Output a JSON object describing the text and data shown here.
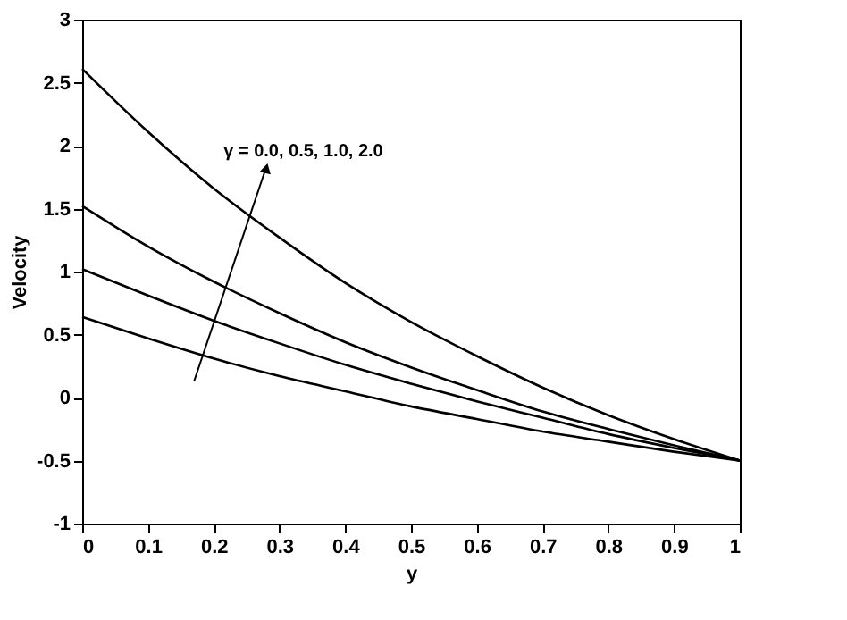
{
  "chart_data": {
    "type": "line",
    "xlabel": "y",
    "ylabel": "Velocity",
    "x": [
      0,
      0.1,
      0.2,
      0.3,
      0.4,
      0.5,
      0.6,
      0.7,
      0.8,
      0.9,
      1
    ],
    "series": [
      {
        "color": "#000000",
        "values": [
          0.64,
          0.47,
          0.31,
          0.17,
          0.05,
          -0.07,
          -0.17,
          -0.27,
          -0.35,
          -0.43,
          -0.5
        ]
      },
      {
        "color": "#000000",
        "values": [
          1.02,
          0.81,
          0.61,
          0.43,
          0.26,
          0.11,
          -0.03,
          -0.16,
          -0.29,
          -0.4,
          -0.5
        ]
      },
      {
        "color": "#000000",
        "values": [
          1.52,
          1.2,
          0.92,
          0.67,
          0.44,
          0.24,
          0.06,
          -0.11,
          -0.25,
          -0.38,
          -0.5
        ]
      },
      {
        "color": "#000000",
        "values": [
          2.61,
          2.11,
          1.66,
          1.27,
          0.91,
          0.6,
          0.33,
          0.08,
          -0.14,
          -0.33,
          -0.5
        ]
      }
    ],
    "xlim": [
      0,
      1
    ],
    "ylim": [
      -1,
      3
    ],
    "xticks": [
      0,
      0.1,
      0.2,
      0.3,
      0.4,
      0.5,
      0.6,
      0.7,
      0.8,
      0.9,
      1
    ],
    "yticks": [
      -1,
      -0.5,
      0,
      0.5,
      1,
      1.5,
      2,
      2.5,
      3
    ],
    "annotations": [
      "γ = 0.0, 0.5, 1.0, 2.0"
    ],
    "grid": false,
    "legend": false,
    "marker": "none",
    "line_style": "solid"
  }
}
